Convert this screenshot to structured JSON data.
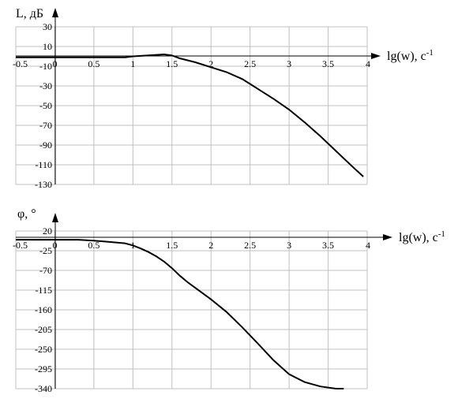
{
  "chart_data": [
    {
      "type": "line",
      "title": "",
      "ylabel": "L, дБ",
      "xlabel_main": "lg(w), c",
      "xlabel_sup": "-1",
      "xlim": [
        -0.5,
        4
      ],
      "ylim": [
        -130,
        30
      ],
      "grid": true,
      "x_ticks": [
        "-0.5",
        "0",
        "0.5",
        "1",
        "1.5",
        "2",
        "2.5",
        "3",
        "3.5",
        "4"
      ],
      "y_ticks": [
        "30",
        "10",
        "-10",
        "-30",
        "-50",
        "-70",
        "-90",
        "-110",
        "-130"
      ],
      "series": [
        {
          "x": [
            -0.5,
            0,
            0.5,
            0.9,
            1.0,
            1.2,
            1.4,
            1.5,
            1.6,
            1.8,
            2.0,
            2.2,
            2.4,
            2.5,
            2.6,
            2.8,
            3.0,
            3.2,
            3.4,
            3.6,
            3.8,
            3.95
          ],
          "values": [
            -1,
            -1,
            -1,
            -1,
            0,
            1,
            2,
            1,
            -2,
            -6,
            -11,
            -16,
            -23,
            -28,
            -33,
            -43,
            -54,
            -67,
            -81,
            -96,
            -111,
            -122
          ]
        }
      ]
    },
    {
      "type": "line",
      "title": "",
      "ylabel": "φ, °",
      "xlabel_main": "lg(w), c",
      "xlabel_sup": "-1",
      "xlim": [
        -0.5,
        4
      ],
      "ylim": [
        -340,
        20
      ],
      "grid": true,
      "x_ticks": [
        "-0.5",
        "0",
        "0.5",
        "1",
        "1.5",
        "2",
        "2.5",
        "3",
        "3.5",
        "4"
      ],
      "y_ticks": [
        "20",
        "-25",
        "-70",
        "-115",
        "-160",
        "-205",
        "-250",
        "-295",
        "-340"
      ],
      "series": [
        {
          "x": [
            -0.5,
            0,
            0.3,
            0.5,
            0.7,
            0.9,
            1.0,
            1.1,
            1.2,
            1.3,
            1.4,
            1.5,
            1.6,
            1.7,
            1.8,
            2.0,
            2.2,
            2.4,
            2.6,
            2.8,
            3.0,
            3.2,
            3.4,
            3.6,
            3.7
          ],
          "values": [
            0,
            0,
            0,
            -2,
            -5,
            -8,
            -13,
            -20,
            -28,
            -38,
            -50,
            -65,
            -82,
            -97,
            -110,
            -136,
            -165,
            -200,
            -237,
            -275,
            -307,
            -325,
            -335,
            -340,
            -340
          ]
        }
      ]
    }
  ]
}
